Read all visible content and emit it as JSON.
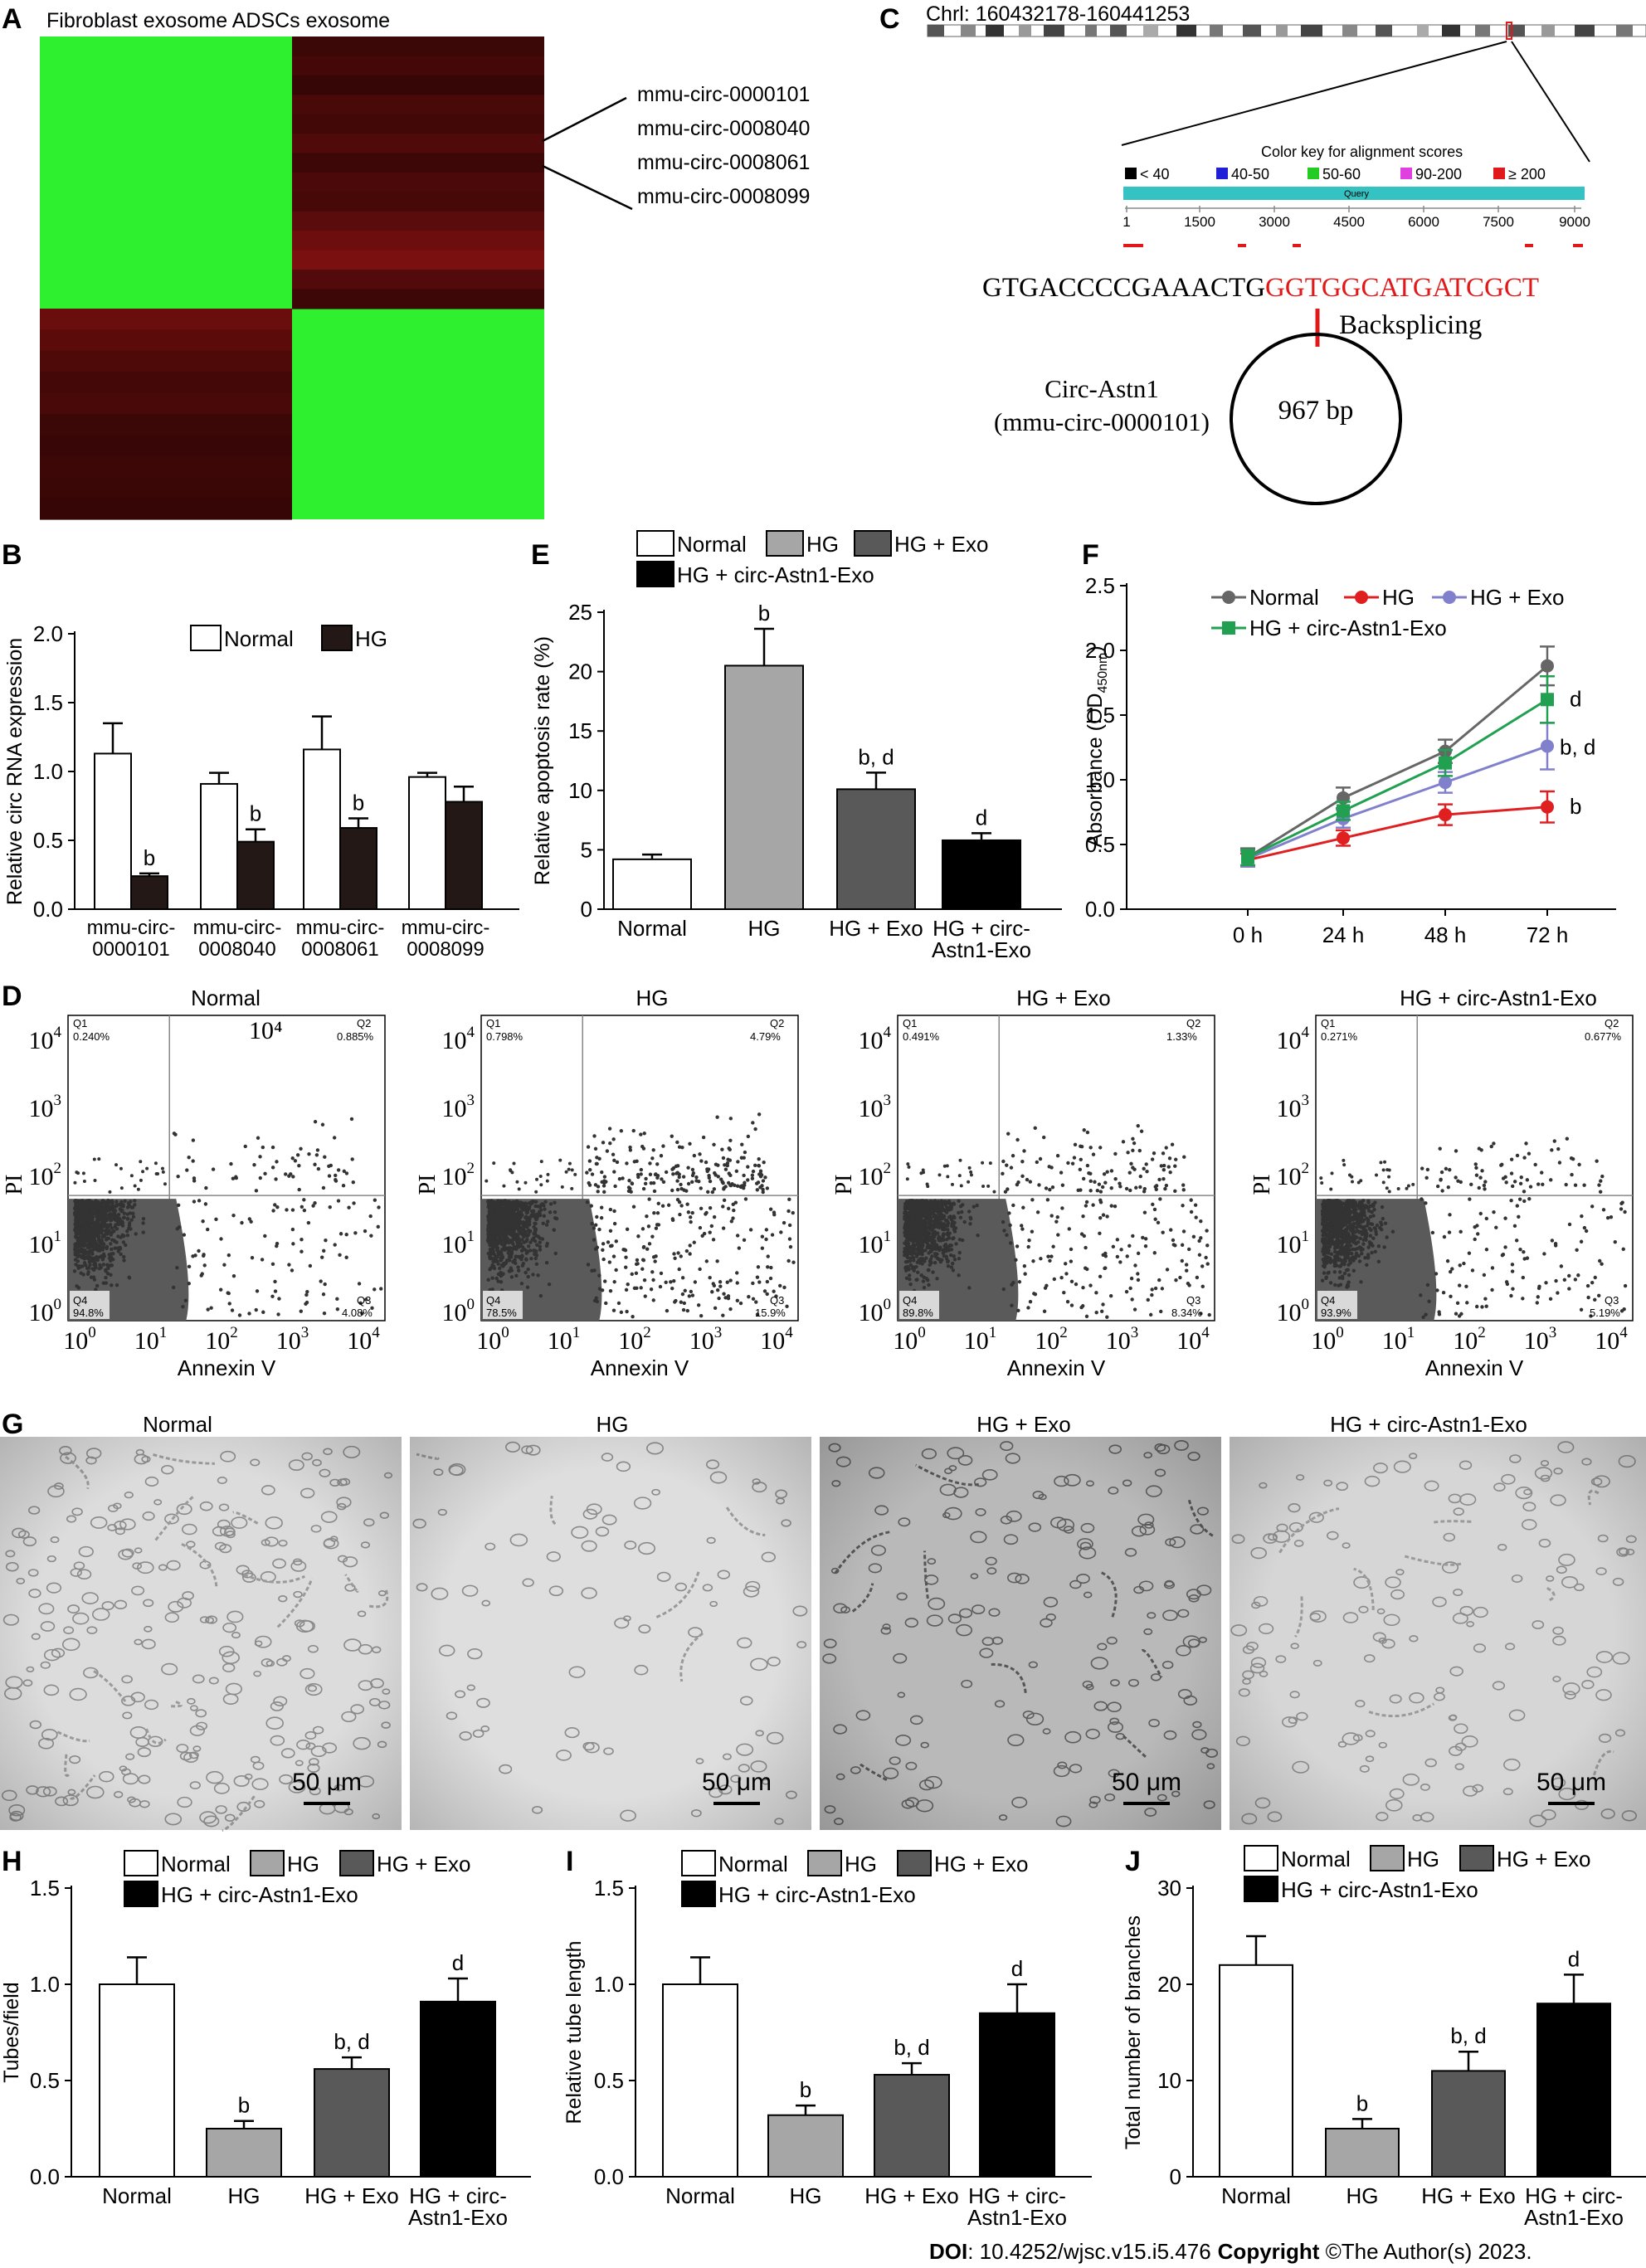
{
  "panel_letters": [
    "A",
    "B",
    "C",
    "D",
    "E",
    "F",
    "G",
    "H",
    "I",
    "J"
  ],
  "heatmap": {
    "title": "Fibroblast exosome ADSCs exosome",
    "labels": [
      "mmu-circ-0000101",
      "mmu-circ-0008040",
      "mmu-circ-0008061",
      "mmu-circ-0008099"
    ],
    "colors": {
      "green": "#2ef02e",
      "red": "#3a0707"
    }
  },
  "panelC": {
    "chrom_title": "Chrl: 160432178-160441253",
    "color_key_title": "Color key for alignment scores",
    "color_key": [
      {
        "label": "< 40",
        "color": "#000000"
      },
      {
        "label": "40-50",
        "color": "#1f1fd8"
      },
      {
        "label": "50-60",
        "color": "#22cc22"
      },
      {
        "label": "90-200",
        "color": "#e040e0"
      },
      {
        "label": "≥ 200",
        "color": "#e01a1a"
      }
    ],
    "query_label": "Query",
    "ruler_ticks": [
      "1",
      "1500",
      "3000",
      "4500",
      "6000",
      "7500",
      "9000"
    ],
    "seq_black": "GTGACCCCGAAACTG",
    "seq_red": "GGTGGCATGATCGCT",
    "backsplicing": "Backsplicing",
    "circ_name_1": "Circ-Astn1",
    "circ_name_2": "(mmu-circ-0000101)",
    "circ_size": "967 bp"
  },
  "flow": {
    "xlabel": "Annexin V",
    "ylabel": "PI",
    "log_ticks": [
      "10",
      "10",
      "10",
      "10",
      "10"
    ],
    "log_exps": [
      "0",
      "1",
      "2",
      "3",
      "4"
    ],
    "normal_extra_label": "10⁴",
    "plots": [
      {
        "title": "Normal",
        "q1": "0.240%",
        "q2": "0.885%",
        "q3": "4.08%",
        "q4": "94.8%"
      },
      {
        "title": "HG",
        "q1": "0.798%",
        "q2": "4.79%",
        "q3": "15.9%",
        "q4": "78.5%"
      },
      {
        "title": "HG + Exo",
        "q1": "0.491%",
        "q2": "1.33%",
        "q3": "8.34%",
        "q4": "89.8%"
      },
      {
        "title": "HG + circ-Astn1-Exo",
        "q1": "0.271%",
        "q2": "0.677%",
        "q3": "5.19%",
        "q4": "93.9%"
      }
    ],
    "quadrant_names": [
      "Q1",
      "Q2",
      "Q3",
      "Q4"
    ]
  },
  "micro": {
    "titles": [
      "Normal",
      "HG",
      "HG + Exo",
      "HG + circ-Astn1-Exo"
    ],
    "scale": "50 μm"
  },
  "legend_labels": [
    "Normal",
    "HG",
    "HG + Exo",
    "HG + circ-Astn1-Exo"
  ],
  "colors": {
    "normal": "#ffffff",
    "hg": "#a6a6a6",
    "exo": "#595959",
    "circ": "#000000",
    "b_black": "#231815",
    "f_normal": "#666666",
    "f_hg": "#e02020",
    "f_exo": "#8080cc",
    "f_circ": "#20a050"
  },
  "chart_data": [
    {
      "panel": "B",
      "type": "bar",
      "ylabel": "Relative circ RNA expression",
      "ylim": [
        0,
        2.0
      ],
      "yticks": [
        "0.0",
        "0.5",
        "1.0",
        "1.5",
        "2.0"
      ],
      "categories": [
        [
          "mmu-circ-",
          "0000101"
        ],
        [
          "mmu-circ-",
          "0008040"
        ],
        [
          "mmu-circ-",
          "0008061"
        ],
        [
          "mmu-circ-",
          "0008099"
        ]
      ],
      "series": [
        {
          "name": "Normal",
          "values": [
            1.13,
            0.91,
            1.16,
            0.96
          ],
          "errors": [
            0.22,
            0.08,
            0.24,
            0.03
          ]
        },
        {
          "name": "HG",
          "values": [
            0.24,
            0.49,
            0.59,
            0.78
          ],
          "errors": [
            0.02,
            0.09,
            0.07,
            0.11
          ]
        }
      ],
      "annotations": [
        "b",
        "b",
        "b",
        ""
      ]
    },
    {
      "panel": "E",
      "type": "bar",
      "ylabel": "Relative apoptosis rate (%)",
      "ylim": [
        0,
        25
      ],
      "yticks": [
        "0",
        "5",
        "10",
        "15",
        "20",
        "25"
      ],
      "categories": [
        [
          "Normal"
        ],
        [
          "HG"
        ],
        [
          "HG + Exo"
        ],
        [
          "HG + circ-",
          "Astn1-Exo"
        ]
      ],
      "values": [
        4.2,
        20.5,
        10.1,
        5.8
      ],
      "errors": [
        0.4,
        3.1,
        1.4,
        0.6
      ],
      "annotations": [
        "",
        "b",
        "b, d",
        "d"
      ]
    },
    {
      "panel": "F",
      "type": "line",
      "ylabel": "Absorbance (OD",
      "ylabel_sub": "450nm",
      "ylim": [
        0,
        2.5
      ],
      "yticks": [
        "0.0",
        "0.5",
        "1.0",
        "1.5",
        "2.0",
        "2.5"
      ],
      "x": [
        "0 h",
        "24 h",
        "48 h",
        "72 h"
      ],
      "series": [
        {
          "name": "Normal",
          "values": [
            0.4,
            0.86,
            1.22,
            1.88
          ],
          "errors": [
            0.07,
            0.08,
            0.09,
            0.15
          ]
        },
        {
          "name": "HG",
          "values": [
            0.38,
            0.55,
            0.73,
            0.79
          ],
          "errors": [
            0.05,
            0.06,
            0.08,
            0.12
          ]
        },
        {
          "name": "HG + Exo",
          "values": [
            0.39,
            0.7,
            0.98,
            1.26
          ],
          "errors": [
            0.06,
            0.07,
            0.08,
            0.18
          ]
        },
        {
          "name": "HG + circ-Astn1-Exo",
          "values": [
            0.4,
            0.76,
            1.13,
            1.62
          ],
          "errors": [
            0.06,
            0.07,
            0.1,
            0.18
          ]
        }
      ],
      "end_annotations": [
        "d",
        "b, d",
        "b"
      ]
    },
    {
      "panel": "H",
      "type": "bar",
      "ylabel": "Tubes/field",
      "ylim": [
        0,
        1.5
      ],
      "yticks": [
        "0.0",
        "0.5",
        "1.0",
        "1.5"
      ],
      "categories": [
        [
          "Normal"
        ],
        [
          "HG"
        ],
        [
          "HG + Exo"
        ],
        [
          "HG + circ-",
          "Astn1-Exo"
        ]
      ],
      "values": [
        1.0,
        0.25,
        0.56,
        0.91
      ],
      "errors": [
        0.14,
        0.04,
        0.06,
        0.12
      ],
      "annotations": [
        "",
        "b",
        "b, d",
        "d"
      ]
    },
    {
      "panel": "I",
      "type": "bar",
      "ylabel": "Relative tube length",
      "ylim": [
        0,
        1.5
      ],
      "yticks": [
        "0.0",
        "0.5",
        "1.0",
        "1.5"
      ],
      "categories": [
        [
          "Normal"
        ],
        [
          "HG"
        ],
        [
          "HG + Exo"
        ],
        [
          "HG + circ-",
          "Astn1-Exo"
        ]
      ],
      "values": [
        1.0,
        0.32,
        0.53,
        0.85
      ],
      "errors": [
        0.14,
        0.05,
        0.06,
        0.15
      ],
      "annotations": [
        "",
        "b",
        "b, d",
        "d"
      ]
    },
    {
      "panel": "J",
      "type": "bar",
      "ylabel": "Total number of branches",
      "ylim": [
        0,
        30
      ],
      "yticks": [
        "0",
        "10",
        "20",
        "30"
      ],
      "categories": [
        [
          "Normal"
        ],
        [
          "HG"
        ],
        [
          "HG + Exo"
        ],
        [
          "HG + circ-",
          "Astn1-Exo"
        ]
      ],
      "values": [
        22,
        5,
        11,
        18
      ],
      "errors": [
        3,
        1,
        2,
        3
      ],
      "annotations": [
        "",
        "b",
        "b, d",
        "d"
      ]
    }
  ],
  "footer": {
    "doi_label": "DOI",
    "doi": ": 10.4252/wjsc.v15.i5.476",
    "copyright_label": "Copyright",
    "copyright": " ©The Author(s) 2023."
  }
}
